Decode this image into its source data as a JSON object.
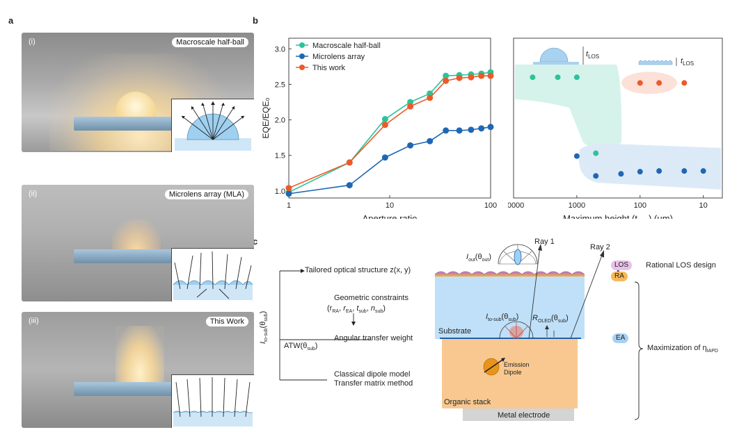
{
  "panel_labels": {
    "a": "a",
    "b": "b",
    "c": "c"
  },
  "photos": [
    {
      "tag": "(i)",
      "caption": "Macroscale half-ball"
    },
    {
      "tag": "(ii)",
      "caption": "Microlens array (MLA)"
    },
    {
      "tag": "(iii)",
      "caption": "This Work"
    }
  ],
  "colors": {
    "green": "#2dc29a",
    "blue": "#1f67b3",
    "orange": "#ec5a2a"
  },
  "chart_data": [
    {
      "type": "line",
      "xscale": "log",
      "xlim": [
        1,
        100
      ],
      "ylim": [
        0.9,
        3.15
      ],
      "xlabel": "Aperture ratio",
      "ylabel": "EQE/EQE₀",
      "yticks": [
        "1.0",
        "1.5",
        "2.0",
        "2.5",
        "3.0"
      ],
      "xticks": [
        "1",
        "10",
        "100"
      ],
      "legend": [
        "Macroscale half-ball",
        "Microlens array",
        "This work"
      ],
      "series": [
        {
          "name": "Macroscale half-ball",
          "color": "#2dc29a",
          "x": [
            1,
            4,
            9,
            16,
            25,
            36,
            49,
            64,
            81,
            100
          ],
          "y": [
            0.98,
            1.4,
            2.01,
            2.25,
            2.37,
            2.62,
            2.63,
            2.64,
            2.65,
            2.67
          ]
        },
        {
          "name": "Microlens array",
          "color": "#1f67b3",
          "x": [
            1,
            4,
            9,
            16,
            25,
            36,
            49,
            64,
            81,
            100
          ],
          "y": [
            0.96,
            1.08,
            1.47,
            1.64,
            1.7,
            1.85,
            1.85,
            1.86,
            1.88,
            1.9
          ]
        },
        {
          "name": "This work",
          "color": "#ec5a2a",
          "x": [
            1,
            4,
            9,
            16,
            25,
            36,
            49,
            64,
            81,
            100
          ],
          "y": [
            1.04,
            1.4,
            1.93,
            2.19,
            2.31,
            2.55,
            2.59,
            2.6,
            2.62,
            2.62
          ]
        }
      ]
    },
    {
      "type": "scatter",
      "xscale": "log",
      "xreverse": true,
      "xlim": [
        10000,
        5
      ],
      "ylim": [
        0.9,
        3.15
      ],
      "xlabel": "Maximum height (t",
      "xlabel_sub": "LOS",
      "xlabel_suffix": ") (μm)",
      "xticks": [
        "10000",
        "1000",
        "100",
        "10"
      ],
      "top_labels": {
        "left": "t",
        "right": "t",
        "sub": "LOS"
      },
      "series": [
        {
          "name": "Macroscale half-ball",
          "color": "#2dc29a",
          "x": [
            5000,
            2000,
            1000,
            500
          ],
          "y": [
            2.6,
            2.6,
            2.6,
            1.53
          ]
        },
        {
          "name": "This work",
          "color": "#ec5a2a",
          "x": [
            100,
            50,
            20
          ],
          "y": [
            2.52,
            2.52,
            2.52
          ]
        },
        {
          "name": "Microlens array",
          "color": "#1f67b3",
          "x": [
            1000,
            500,
            200,
            100,
            50,
            20,
            10
          ],
          "y": [
            1.49,
            1.21,
            1.24,
            1.27,
            1.28,
            1.28,
            1.28
          ]
        }
      ]
    }
  ],
  "panel_c": {
    "ray1": "Ray 1",
    "ray2": "Ray 2",
    "los": "LOS",
    "ra": "RA",
    "ea": "EA",
    "rational_los": "Rational LOS design",
    "maximization": "Maximization of η",
    "maximization_sub": "IAPD",
    "iout": "I",
    "iout_sub": "out",
    "iout_arg": "(θ",
    "iout_arg_sub": "out",
    "tailored": "Tailored optical structure z(x, y)",
    "geometric": "Geometric constraints",
    "geometric_params": "(r",
    "angular": "Angular transfer weight",
    "atw": "ATW(θ",
    "atw_sub": "sub",
    "classical": "Classical dipole model",
    "transfer": "Transfer matrix method",
    "substrate": "Substrate",
    "organic": "Organic stack",
    "metal": "Metal electrode",
    "emission": "Emission",
    "dipole": "Dipole",
    "itosub": "I",
    "itosub_sub": "to-sub",
    "roled": "R",
    "roled_sub": "OLED",
    "vert_label": "I",
    "vert_label_sub": "to-sub",
    "vert_label_arg": "(θ",
    "vert_label_arg_sub": "sub"
  }
}
